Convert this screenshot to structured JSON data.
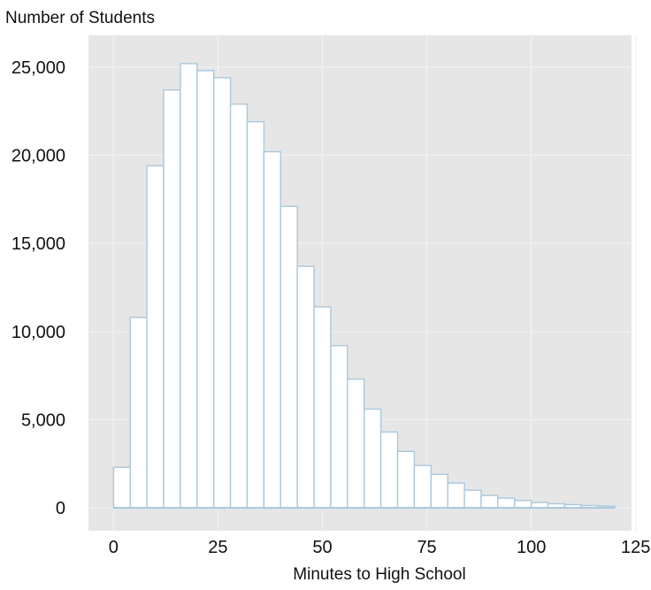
{
  "chart_data": {
    "type": "histogram",
    "ylabel": "Number of Students",
    "xlabel": "Minutes to High School",
    "bin_width": 4,
    "bin_starts": [
      0,
      4,
      8,
      12,
      16,
      20,
      24,
      28,
      32,
      36,
      40,
      44,
      48,
      52,
      56,
      60,
      64,
      68,
      72,
      76,
      80,
      84,
      88,
      92,
      96,
      100,
      104,
      108,
      112,
      116
    ],
    "values": [
      2300,
      10800,
      19400,
      23700,
      25200,
      24800,
      24400,
      22900,
      21900,
      20200,
      17100,
      13700,
      11400,
      9200,
      7300,
      5600,
      4300,
      3200,
      2400,
      1900,
      1400,
      1000,
      700,
      550,
      420,
      300,
      230,
      180,
      130,
      100
    ],
    "xlim": [
      -6,
      124
    ],
    "ylim": [
      -1300,
      26800
    ],
    "xticks": [
      0,
      25,
      50,
      75,
      100,
      125
    ],
    "xtick_labels": [
      "0",
      "25",
      "50",
      "75",
      "100",
      "125"
    ],
    "yticks": [
      0,
      5000,
      10000,
      15000,
      20000,
      25000
    ],
    "ytick_labels": [
      "0",
      "5,000",
      "10,000",
      "15,000",
      "20,000",
      "25,000"
    ],
    "grid": true,
    "colors": {
      "panel": "#e6e6e6",
      "grid": "#f2f2f2",
      "bar_fill": "#ffffff",
      "bar_stroke": "#a9c8dd",
      "baseline": "#a9c8dd"
    }
  }
}
